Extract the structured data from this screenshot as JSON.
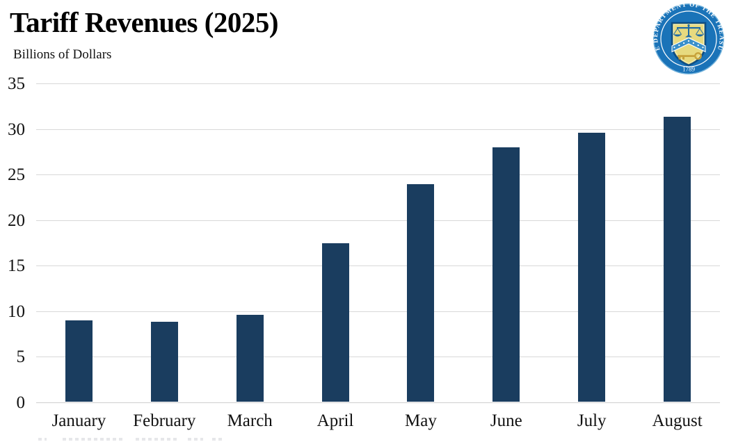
{
  "header": {
    "title": "Tariff Revenues (2025)",
    "subtitle": "Billions of Dollars"
  },
  "logo": {
    "name": "us-department-of-the-treasury-seal",
    "ring_text": "THE DEPARTMENT OF THE TREASURY",
    "year": "1789",
    "colors": {
      "ring_blue": "#1a73b8",
      "rim_light": "#6fb0da",
      "shield_gold": "#e7da7f",
      "chevron_blue": "#3a90ca",
      "emblem_blue": "#1f6aa5",
      "key_gold": "#c7a23b"
    }
  },
  "chart_data": {
    "type": "bar",
    "title": "Tariff Revenues (2025)",
    "ylabel": "Billions of Dollars",
    "xlabel": "",
    "categories": [
      "January",
      "February",
      "March",
      "April",
      "May",
      "June",
      "July",
      "August"
    ],
    "values": [
      8.9,
      8.8,
      9.5,
      17.4,
      23.9,
      27.9,
      29.5,
      31.3
    ],
    "ylim": [
      0,
      35
    ],
    "yticks": [
      0,
      5,
      10,
      15,
      20,
      25,
      30,
      35
    ],
    "grid": true,
    "legend": "none",
    "bar_color": "#1a3d5f",
    "gridline_color": "#d8d8d8"
  }
}
